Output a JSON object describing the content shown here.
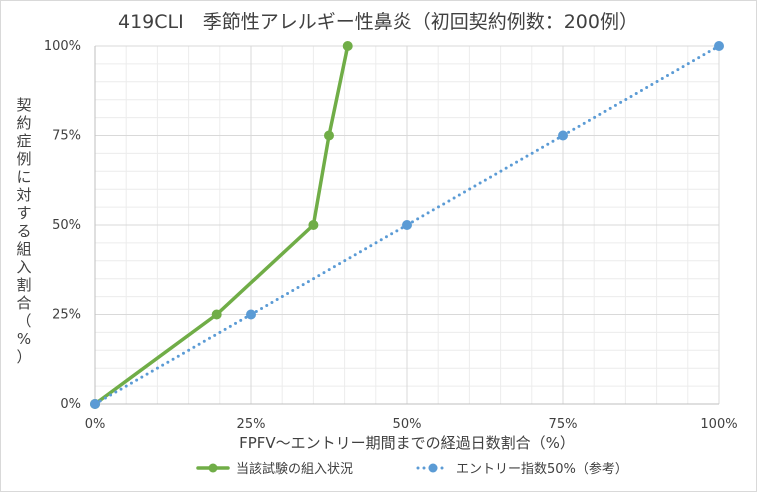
{
  "chart_data": {
    "type": "line",
    "title": "419CLI　季節性アレルギー性鼻炎（初回契約例数：200例）",
    "xlabel": "FPFV～エントリー期間までの経過日数割合（%）",
    "ylabel": "契約症例に対する組入割合（%）",
    "x_tick_labels": [
      "0%",
      "25%",
      "50%",
      "75%",
      "100%"
    ],
    "y_tick_labels": [
      "0%",
      "25%",
      "50%",
      "75%",
      "100%"
    ],
    "xlim": [
      0,
      100
    ],
    "ylim": [
      0,
      100
    ],
    "grid": true,
    "legend_position": "bottom",
    "series": [
      {
        "name": "当該試験の組入状況",
        "color": "#70ad47",
        "style": "solid",
        "points": [
          {
            "x": 0,
            "y": 0
          },
          {
            "x": 19.5,
            "y": 25
          },
          {
            "x": 35,
            "y": 50
          },
          {
            "x": 37.5,
            "y": 75
          },
          {
            "x": 40.5,
            "y": 100
          }
        ]
      },
      {
        "name": "エントリー指数50%（参考）",
        "color": "#5b9bd5",
        "style": "dotted",
        "points": [
          {
            "x": 0,
            "y": 0
          },
          {
            "x": 25,
            "y": 25
          },
          {
            "x": 50,
            "y": 50
          },
          {
            "x": 75,
            "y": 75
          },
          {
            "x": 100,
            "y": 100
          }
        ]
      }
    ]
  }
}
